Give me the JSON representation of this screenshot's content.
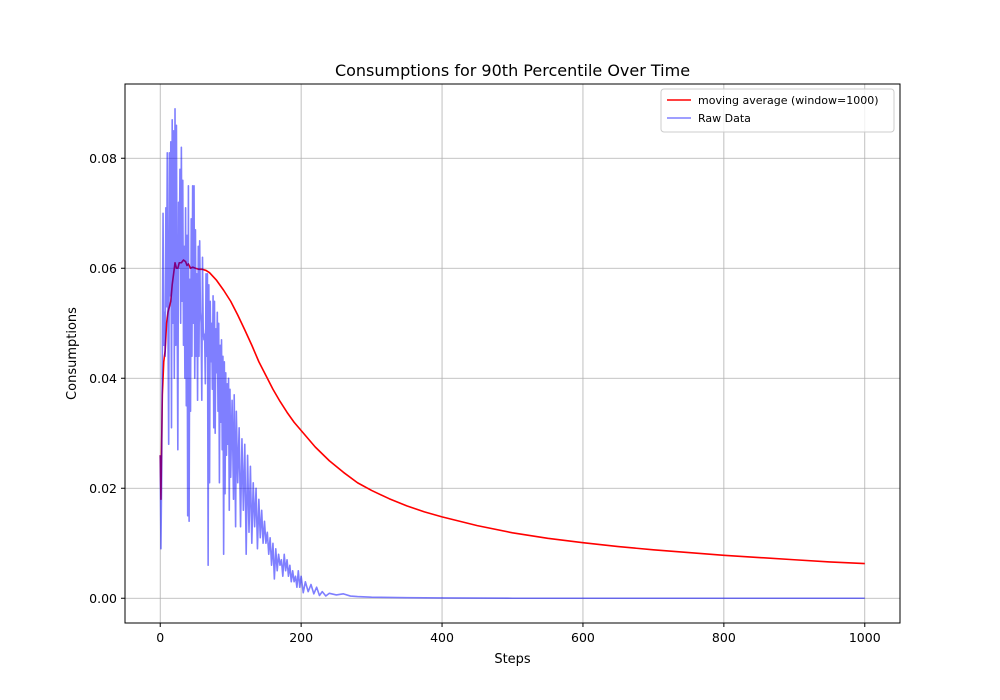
{
  "chart_data": {
    "type": "line",
    "title": "Consumptions for 90th Percentile Over Time",
    "xlabel": "Steps",
    "ylabel": "Consumptions",
    "xlim": [
      -50,
      1050
    ],
    "ylim": [
      -0.0045,
      0.0935
    ],
    "xticks": [
      0,
      200,
      400,
      600,
      800,
      1000
    ],
    "yticks": [
      0.0,
      0.02,
      0.04,
      0.06,
      0.08
    ],
    "xtick_labels": [
      "0",
      "200",
      "400",
      "600",
      "800",
      "1000"
    ],
    "ytick_labels": [
      "0.00",
      "0.02",
      "0.04",
      "0.06",
      "0.08"
    ],
    "grid": true,
    "legend_position": "top-right",
    "series": [
      {
        "name": "moving average (window=1000)",
        "color": "#ff0000",
        "points": [
          [
            0,
            0.026
          ],
          [
            1,
            0.018
          ],
          [
            2,
            0.028
          ],
          [
            3,
            0.037
          ],
          [
            5,
            0.043
          ],
          [
            7,
            0.045
          ],
          [
            9,
            0.05
          ],
          [
            11,
            0.052
          ],
          [
            13,
            0.053
          ],
          [
            15,
            0.054
          ],
          [
            17,
            0.057
          ],
          [
            19,
            0.059
          ],
          [
            21,
            0.061
          ],
          [
            23,
            0.06
          ],
          [
            25,
            0.06
          ],
          [
            27,
            0.061
          ],
          [
            30,
            0.061
          ],
          [
            33,
            0.0615
          ],
          [
            36,
            0.0612
          ],
          [
            38,
            0.0605
          ],
          [
            40,
            0.0608
          ],
          [
            43,
            0.06
          ],
          [
            46,
            0.0602
          ],
          [
            50,
            0.06
          ],
          [
            55,
            0.0598
          ],
          [
            60,
            0.0598
          ],
          [
            65,
            0.0596
          ],
          [
            70,
            0.0592
          ],
          [
            80,
            0.0578
          ],
          [
            90,
            0.056
          ],
          [
            100,
            0.054
          ],
          [
            110,
            0.0515
          ],
          [
            120,
            0.0488
          ],
          [
            130,
            0.046
          ],
          [
            140,
            0.043
          ],
          [
            150,
            0.0405
          ],
          [
            160,
            0.038
          ],
          [
            170,
            0.0358
          ],
          [
            180,
            0.0338
          ],
          [
            190,
            0.032
          ],
          [
            200,
            0.0305
          ],
          [
            220,
            0.0275
          ],
          [
            240,
            0.025
          ],
          [
            260,
            0.0229
          ],
          [
            280,
            0.021
          ],
          [
            300,
            0.0196
          ],
          [
            325,
            0.0181
          ],
          [
            350,
            0.0168
          ],
          [
            375,
            0.0157
          ],
          [
            400,
            0.0148
          ],
          [
            450,
            0.0132
          ],
          [
            500,
            0.0119
          ],
          [
            550,
            0.0109
          ],
          [
            600,
            0.0101
          ],
          [
            650,
            0.0094
          ],
          [
            700,
            0.0088
          ],
          [
            750,
            0.0083
          ],
          [
            800,
            0.0078
          ],
          [
            850,
            0.0074
          ],
          [
            900,
            0.007
          ],
          [
            950,
            0.0066
          ],
          [
            1000,
            0.0063
          ]
        ]
      },
      {
        "name": "Raw Data",
        "color": "#0000ff",
        "points": [
          [
            0,
            0.026
          ],
          [
            1,
            0.009
          ],
          [
            2,
            0.022
          ],
          [
            3,
            0.045
          ],
          [
            4,
            0.07
          ],
          [
            5,
            0.046
          ],
          [
            6,
            0.052
          ],
          [
            7,
            0.044
          ],
          [
            8,
            0.071
          ],
          [
            9,
            0.053
          ],
          [
            10,
            0.081
          ],
          [
            11,
            0.05
          ],
          [
            12,
            0.028
          ],
          [
            13,
            0.081
          ],
          [
            14,
            0.055
          ],
          [
            15,
            0.083
          ],
          [
            16,
            0.031
          ],
          [
            17,
            0.087
          ],
          [
            18,
            0.05
          ],
          [
            19,
            0.085
          ],
          [
            20,
            0.04
          ],
          [
            21,
            0.089
          ],
          [
            22,
            0.046
          ],
          [
            23,
            0.086
          ],
          [
            24,
            0.052
          ],
          [
            25,
            0.027
          ],
          [
            26,
            0.072
          ],
          [
            27,
            0.06
          ],
          [
            28,
            0.078
          ],
          [
            29,
            0.05
          ],
          [
            30,
            0.082
          ],
          [
            31,
            0.054
          ],
          [
            32,
            0.076
          ],
          [
            33,
            0.046
          ],
          [
            34,
            0.064
          ],
          [
            35,
            0.04
          ],
          [
            36,
            0.071
          ],
          [
            37,
            0.035
          ],
          [
            38,
            0.066
          ],
          [
            39,
            0.015
          ],
          [
            40,
            0.075
          ],
          [
            41,
            0.014
          ],
          [
            42,
            0.058
          ],
          [
            43,
            0.034
          ],
          [
            44,
            0.069
          ],
          [
            45,
            0.044
          ],
          [
            46,
            0.075
          ],
          [
            47,
            0.05
          ],
          [
            48,
            0.075
          ],
          [
            49,
            0.04
          ],
          [
            50,
            0.067
          ],
          [
            51,
            0.044
          ],
          [
            52,
            0.059
          ],
          [
            53,
            0.036
          ],
          [
            54,
            0.064
          ],
          [
            55,
            0.044
          ],
          [
            56,
            0.065
          ],
          [
            57,
            0.052
          ],
          [
            58,
            0.05
          ],
          [
            59,
            0.036
          ],
          [
            60,
            0.062
          ],
          [
            61,
            0.049
          ],
          [
            62,
            0.047
          ],
          [
            63,
            0.048
          ],
          [
            64,
            0.039
          ],
          [
            65,
            0.059
          ],
          [
            66,
            0.044
          ],
          [
            67,
            0.059
          ],
          [
            68,
            0.006
          ],
          [
            69,
            0.057
          ],
          [
            70,
            0.021
          ],
          [
            71,
            0.054
          ],
          [
            72,
            0.043
          ],
          [
            73,
            0.05
          ],
          [
            74,
            0.038
          ],
          [
            75,
            0.055
          ],
          [
            76,
            0.031
          ],
          [
            77,
            0.054
          ],
          [
            78,
            0.03
          ],
          [
            79,
            0.049
          ],
          [
            80,
            0.041
          ],
          [
            81,
            0.052
          ],
          [
            82,
            0.034
          ],
          [
            83,
            0.05
          ],
          [
            84,
            0.021
          ],
          [
            85,
            0.046
          ],
          [
            86,
            0.032
          ],
          [
            87,
            0.047
          ],
          [
            88,
            0.027
          ],
          [
            89,
            0.044
          ],
          [
            90,
            0.008
          ],
          [
            91,
            0.043
          ],
          [
            92,
            0.019
          ],
          [
            93,
            0.041
          ],
          [
            94,
            0.026
          ],
          [
            95,
            0.039
          ],
          [
            96,
            0.028
          ],
          [
            97,
            0.04
          ],
          [
            98,
            0.016
          ],
          [
            99,
            0.038
          ],
          [
            100,
            0.022
          ],
          [
            102,
            0.036
          ],
          [
            104,
            0.018
          ],
          [
            105,
            0.037
          ],
          [
            107,
            0.013
          ],
          [
            108,
            0.034
          ],
          [
            110,
            0.021
          ],
          [
            112,
            0.031
          ],
          [
            114,
            0.013
          ],
          [
            116,
            0.029
          ],
          [
            118,
            0.016
          ],
          [
            120,
            0.028
          ],
          [
            122,
            0.008
          ],
          [
            124,
            0.026
          ],
          [
            126,
            0.012
          ],
          [
            128,
            0.024
          ],
          [
            130,
            0.01
          ],
          [
            132,
            0.021
          ],
          [
            134,
            0.013
          ],
          [
            136,
            0.02
          ],
          [
            138,
            0.009
          ],
          [
            140,
            0.018
          ],
          [
            142,
            0.011
          ],
          [
            144,
            0.016
          ],
          [
            146,
            0.01
          ],
          [
            148,
            0.014
          ],
          [
            150,
            0.01
          ],
          [
            152,
            0.012
          ],
          [
            154,
            0.008
          ],
          [
            156,
            0.011
          ],
          [
            158,
            0.006
          ],
          [
            160,
            0.01
          ],
          [
            162,
            0.0035
          ],
          [
            164,
            0.009
          ],
          [
            166,
            0.005
          ],
          [
            168,
            0.008
          ],
          [
            170,
            0.006
          ],
          [
            172,
            0.007
          ],
          [
            174,
            0.004
          ],
          [
            176,
            0.008
          ],
          [
            178,
            0.005
          ],
          [
            180,
            0.007
          ],
          [
            182,
            0.004
          ],
          [
            184,
            0.006
          ],
          [
            186,
            0.003
          ],
          [
            188,
            0.005
          ],
          [
            190,
            0.003
          ],
          [
            192,
            0.004
          ],
          [
            194,
            0.002
          ],
          [
            196,
            0.005
          ],
          [
            198,
            0.002
          ],
          [
            200,
            0.004
          ],
          [
            203,
            0.001
          ],
          [
            206,
            0.003
          ],
          [
            210,
            0.0012
          ],
          [
            214,
            0.0025
          ],
          [
            218,
            0.0008
          ],
          [
            222,
            0.002
          ],
          [
            226,
            0.0005
          ],
          [
            230,
            0.0012
          ],
          [
            235,
            0.0004
          ],
          [
            240,
            0.0009
          ],
          [
            250,
            0.0006
          ],
          [
            260,
            0.0008
          ],
          [
            270,
            0.0004
          ],
          [
            280,
            0.0003
          ],
          [
            300,
            0.0002
          ],
          [
            350,
            0.0001
          ],
          [
            400,
            5e-05
          ],
          [
            500,
            0.0
          ],
          [
            600,
            0.0
          ],
          [
            700,
            0.0
          ],
          [
            800,
            0.0
          ],
          [
            900,
            0.0
          ],
          [
            1000,
            0.0
          ]
        ]
      }
    ]
  }
}
